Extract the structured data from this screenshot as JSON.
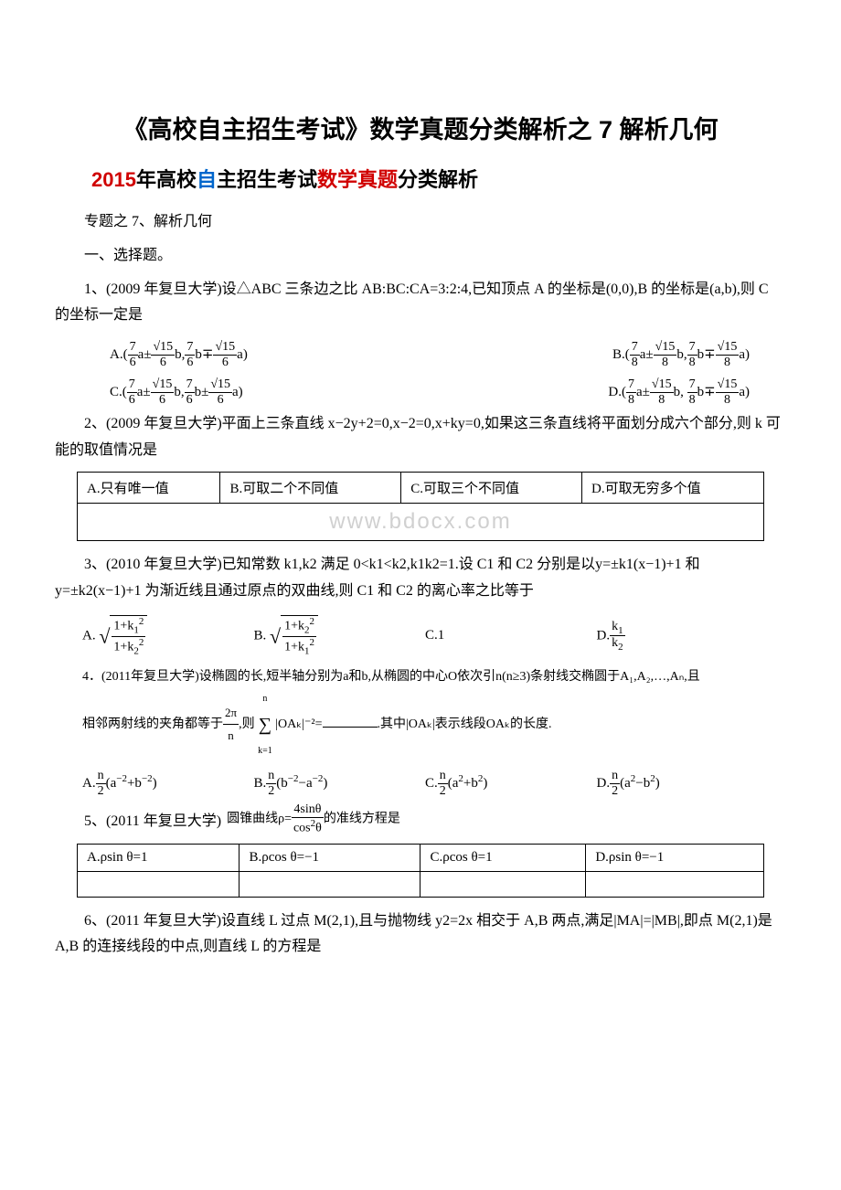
{
  "title": "《高校自主招生考试》数学真题分类解析之 7 解析几何",
  "subtitle": {
    "y2015": "2015",
    "nian": "年高校",
    "auto": "自",
    "zhu": "主招生考试",
    "math": "数学真题",
    "rest": "分类解析"
  },
  "section": "专题之 7、解析几何",
  "part1": "一、选择题。",
  "q1_text": "1、(2009 年复旦大学)设△ABC 三条边之比 AB:BC:CA=3:2:4,已知顶点 A 的坐标是(0,0),B 的坐标是(a,b),则 C 的坐标一定是",
  "q1": {
    "A": "A.(⁷⁄₆a±(√15/6)b, ⁷⁄₆b∓(√15/6)a)",
    "B": "B.(⁷⁄₈a±(√15/8)b, ⁷⁄₈b∓(√15/8)a)",
    "C": "C.(⁷⁄₆a±(√15/6)b, ⁷⁄₆b±(√15/6)a)",
    "D": "D.(⁷⁄₈a±(√15/8)b, ⁷⁄₈b∓(√15/8)a)"
  },
  "q2_text": "2、(2009 年复旦大学)平面上三条直线 x−2y+2=0,x−2=0,x+ky=0,如果这三条直线将平面划分成六个部分,则 k 可能的取值情况是",
  "q2": {
    "A": "A.只有唯一值",
    "B": "B.可取二个不同值",
    "C": "C.可取三个不同值",
    "D": "D.可取无穷多个值"
  },
  "watermark": "www.bdocx.com",
  "q3_text": "3、(2010 年复旦大学)已知常数 k1,k2 满足 0<k1<k2,k1k2=1.设 C1 和 C2 分别是以y=±k1(x−1)+1 和 y=±k2(x−1)+1 为渐近线且通过原点的双曲线,则 C1 和 C2 的离心率之比等于",
  "q3": {
    "A_label": "A.",
    "B_label": "B.",
    "C": "C.1",
    "D_label": "D."
  },
  "q4_line1": "4．(2011年复旦大学)设椭圆的长,短半轴分别为a和b,从椭圆的中心O依次引n(n≥3)条射线交椭圆于A₁,A₂,…,Aₙ,且",
  "q4_line2_a": "相邻两射线的夹角都等于",
  "q4_line2_b": ",则",
  "q4_line2_c": "|OAₖ|⁻²=",
  "q4_line2_d": ".其中|OAₖ|表示线段OAₖ的长度.",
  "q4": {
    "A": "A. n/2 (a⁻²+b⁻²)",
    "B": "B. n/2 (b⁻²−a⁻²)",
    "C": "C. n/2 (a²+b²)",
    "D": "D. n/2 (a²−b²)"
  },
  "q5_lead": "5、(2011 年复旦大学)",
  "q5_formula": "圆锥曲线ρ=4sinθ/cos²θ 的准线方程是",
  "q5": {
    "A": "A.ρsin θ=1",
    "B": "B.ρcos θ=−1",
    "C": "C.ρcos θ=1",
    "D": "D.ρsin θ=−1"
  },
  "q6_text": "6、(2011 年复旦大学)设直线 L 过点 M(2,1),且与抛物线 y2=2x 相交于 A,B 两点,满足|MA|=|MB|,即点 M(2,1)是 A,B 的连接线段的中点,则直线 L 的方程是",
  "colors": {
    "red": "#d00000",
    "blue": "#0066cc",
    "black": "#000000",
    "watermark": "#d0d0d0",
    "bg": "#ffffff"
  }
}
